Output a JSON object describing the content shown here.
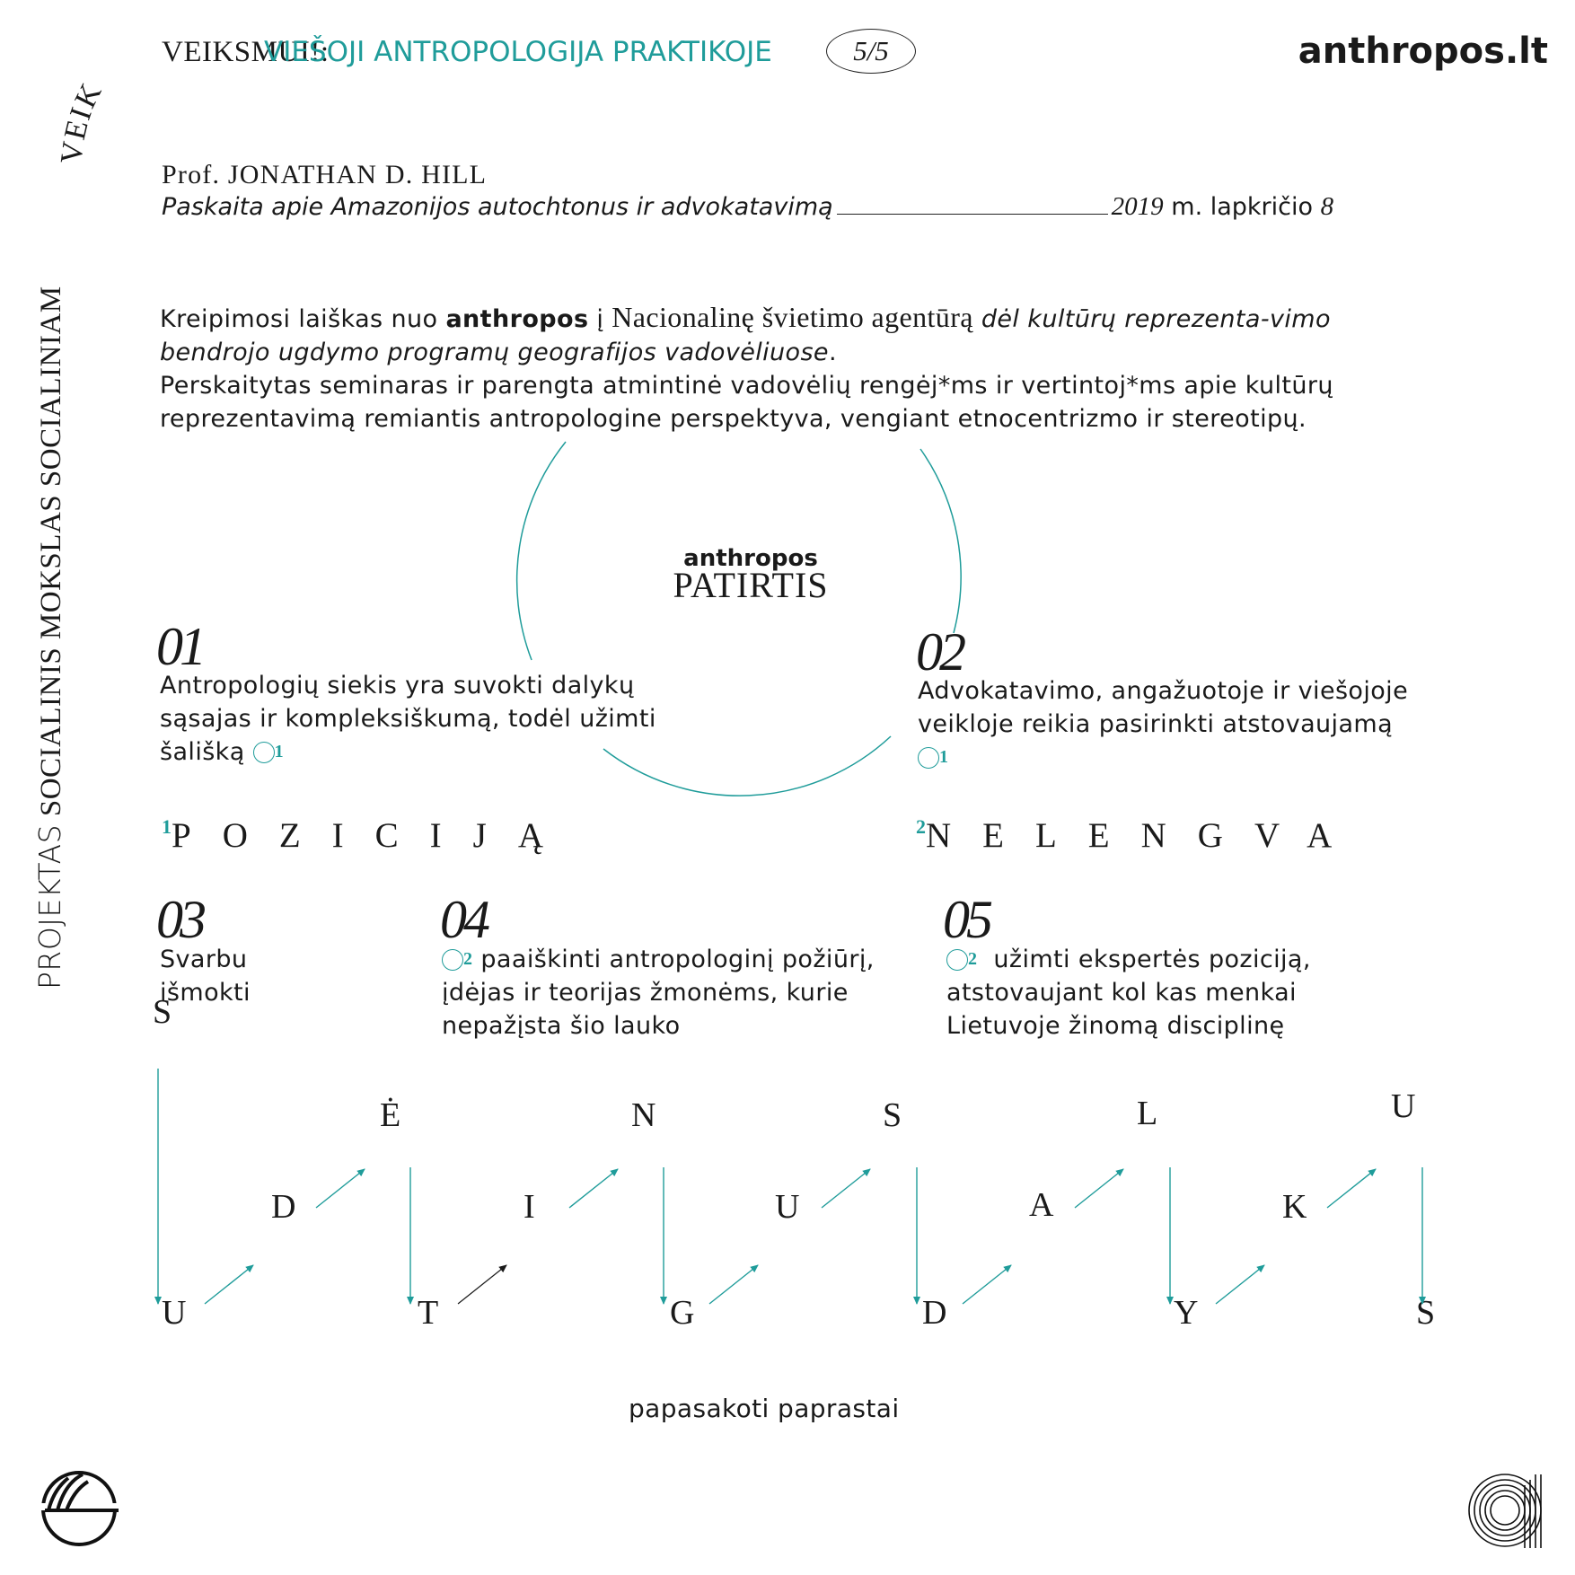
{
  "header": {
    "project_prefix": "VEIKSMUI!:",
    "title": "VIEŠOJI ANTROPOLOGIJA PRAKTIKOJE",
    "page_badge": "5/5",
    "brand": "anthropos.lt"
  },
  "side": {
    "projektas": "PROJEKTAS",
    "rest": " SOCIALINIS MOKSLAS SOCIALINIAM ",
    "veik": "VEIK"
  },
  "lecture": {
    "prof": "Prof. JONATHAN D. HILL",
    "title": "Paskaita apie Amazonijos autochtonus ir advokatavimą",
    "year": "2019",
    "month": "m. lapkričio",
    "day": "8"
  },
  "paragraph": {
    "p1_a": "Kreipimosi laiškas nuo ",
    "p1_bold": "anthropos",
    "p1_b": " į ",
    "p1_serif": "Nacionalinę švietimo agentūrą",
    "p1_italic": " dėl kultūrų reprezenta-vimo bendrojo ugdymo programų geografijos vadovėliuose",
    "p1_end": ".",
    "p2": "Perskaitytas seminaras ir parengta atmintinė vadovėlių rengėj*ms ir vertintoj*ms apie kultūrų reprezentavimą remiantis antropologine perspektyva, vengiant etnocentrizmo ir stereotipų."
  },
  "center": {
    "brand": "anthropos",
    "label": "PATIRTIS"
  },
  "items": {
    "i01": {
      "num": "01",
      "text": "Antropologių siekis yra suvokti dalykų sąsajas ir kompleksiškumą, todėl užimti šališką",
      "sup": "1"
    },
    "i02": {
      "num": "02",
      "text": "Advokatavimo, angažuotoje ir viešojoje veikloje reikia pasirinkti atstovaujamą",
      "sup": "1"
    },
    "i03": {
      "num": "03",
      "text": "Svarbu išmokti"
    },
    "i04": {
      "num": "04",
      "sup": "2",
      "text": "paaiškinti antropologinį požiūrį, įdėjas ir teorijas žmonėms, kurie nepažįsta šio lauko"
    },
    "i05": {
      "num": "05",
      "sup": "2",
      "text": "užimti ekspertės poziciją, atstovaujant kol kas menkai Lietuvoje žinomą disciplinę"
    }
  },
  "footnotes": {
    "f1_sup": "1",
    "f1_word": "POZICIJĄ",
    "f2_sup": "2",
    "f2_word": "NELENGVA"
  },
  "zigzag": {
    "letters": [
      "S",
      "U",
      "D",
      "Ė",
      "T",
      "I",
      "N",
      "G",
      "U",
      "S",
      "D",
      "A",
      "L",
      "Y",
      "K",
      "U",
      "S"
    ],
    "caption": "papasakoti paprastai"
  },
  "colors": {
    "accent": "#1f9c9a",
    "text": "#1a1a1a"
  }
}
